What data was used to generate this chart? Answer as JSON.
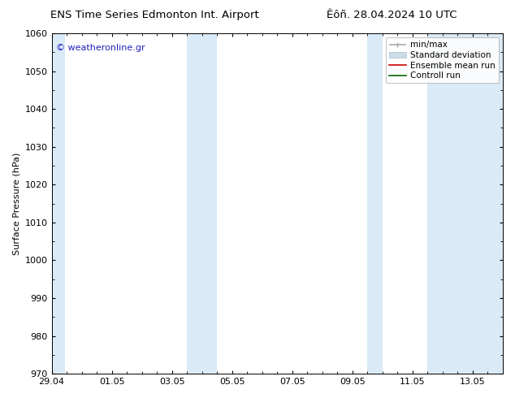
{
  "title_left": "ENS Time Series Edmonton Int. Airport",
  "title_right": "Êôñ. 28.04.2024 10 UTC",
  "ylabel": "Surface Pressure (hPa)",
  "ylim": [
    970,
    1060
  ],
  "yticks": [
    970,
    980,
    990,
    1000,
    1010,
    1020,
    1030,
    1040,
    1050,
    1060
  ],
  "xlim": [
    0,
    15
  ],
  "xtick_labels": [
    "29.04",
    "01.05",
    "03.05",
    "05.05",
    "07.05",
    "09.05",
    "11.05",
    "13.05"
  ],
  "xtick_positions": [
    0,
    2,
    4,
    6,
    8,
    10,
    12,
    14
  ],
  "watermark": "© weatheronline.gr",
  "watermark_color": "#2222bb",
  "bg_color": "#ffffff",
  "plot_bg_color": "#ffffff",
  "shaded_bands": [
    {
      "x_start": 0.0,
      "x_end": 0.45,
      "color": "#daeaf6"
    },
    {
      "x_start": 4.5,
      "x_end": 5.0,
      "color": "#daeaf6"
    },
    {
      "x_start": 5.0,
      "x_end": 5.5,
      "color": "#daeaf6"
    },
    {
      "x_start": 10.5,
      "x_end": 11.0,
      "color": "#daeaf6"
    },
    {
      "x_start": 12.5,
      "x_end": 13.0,
      "color": "#daeaf6"
    },
    {
      "x_start": 13.0,
      "x_end": 15.0,
      "color": "#daeaf6"
    }
  ],
  "legend_entries": [
    {
      "label": "min/max",
      "color": "#aaaaaa",
      "lw": 1.2
    },
    {
      "label": "Standard deviation",
      "color": "#ccdde8",
      "lw": 8
    },
    {
      "label": "Ensemble mean run",
      "color": "#cc0000",
      "lw": 1.2
    },
    {
      "label": "Controll run",
      "color": "#006600",
      "lw": 1.2
    }
  ],
  "font_size_title": 9.5,
  "font_size_legend": 7.5,
  "font_size_ticks": 8,
  "font_size_ylabel": 8,
  "font_size_watermark": 8
}
